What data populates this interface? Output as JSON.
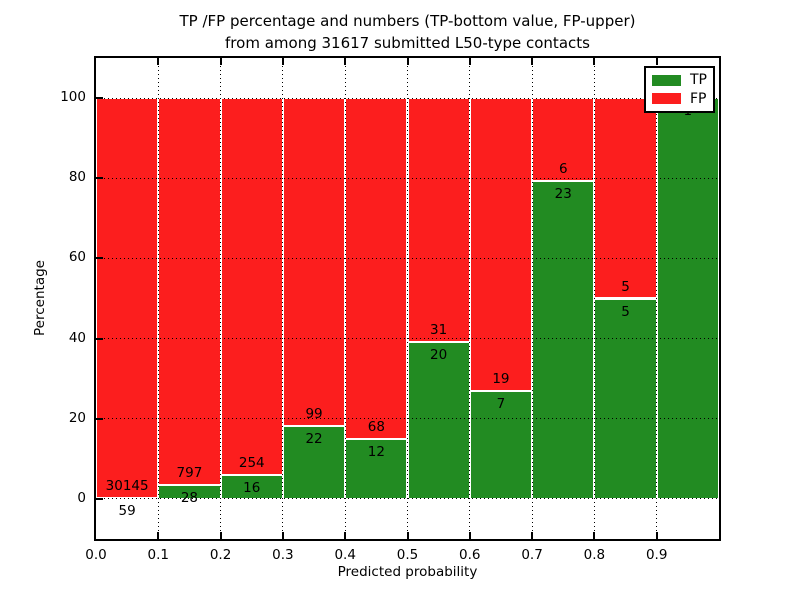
{
  "figure": {
    "title_line1": "TP /FP percentage and numbers (TP-bottom value, FP-upper)",
    "title_line2": "from among 31617 submitted L50-type contacts"
  },
  "axes": {
    "xlabel": "Predicted probability",
    "ylabel": "Percentage",
    "x_tick_labels": [
      "0.0",
      "0.1",
      "0.2",
      "0.3",
      "0.4",
      "0.5",
      "0.6",
      "0.7",
      "0.8",
      "0.9"
    ],
    "y_tick_labels": [
      "0",
      "20",
      "40",
      "60",
      "80",
      "100"
    ]
  },
  "legend": {
    "entries": [
      {
        "label": "TP",
        "color": "#228b22"
      },
      {
        "label": "FP",
        "color": "#fc1e1e"
      }
    ]
  },
  "colors": {
    "tp": "#228b22",
    "fp": "#fc1e1e",
    "grid": "#000000",
    "text": "#000000",
    "background": "#ffffff"
  },
  "chart_data": {
    "type": "bar",
    "stacked": true,
    "normalized_to_percent": true,
    "title": "TP /FP percentage and numbers (TP-bottom value, FP-upper) from among 31617 submitted L50-type contacts",
    "xlabel": "Predicted probability",
    "ylabel": "Percentage",
    "xlim": [
      0.0,
      1.0
    ],
    "ylim": [
      -10,
      110
    ],
    "x_tick_values": [
      0.0,
      0.1,
      0.2,
      0.3,
      0.4,
      0.5,
      0.6,
      0.7,
      0.8,
      0.9
    ],
    "x_grid_values": [
      0.1,
      0.2,
      0.3,
      0.4,
      0.5,
      0.6,
      0.7,
      0.8,
      0.9
    ],
    "y_tick_values": [
      0,
      20,
      40,
      60,
      80,
      100
    ],
    "grid": "dotted",
    "legend_position": "upper right",
    "bin_width": 0.1,
    "bins": [
      {
        "x0": 0.0,
        "x1": 0.1,
        "tp": 59,
        "fp": 30145,
        "tp_label": "59",
        "fp_label": "30145"
      },
      {
        "x0": 0.1,
        "x1": 0.2,
        "tp": 28,
        "fp": 797,
        "tp_label": "28",
        "fp_label": "797"
      },
      {
        "x0": 0.2,
        "x1": 0.3,
        "tp": 16,
        "fp": 254,
        "tp_label": "16",
        "fp_label": "254"
      },
      {
        "x0": 0.3,
        "x1": 0.4,
        "tp": 22,
        "fp": 99,
        "tp_label": "22",
        "fp_label": "99"
      },
      {
        "x0": 0.4,
        "x1": 0.5,
        "tp": 12,
        "fp": 68,
        "tp_label": "12",
        "fp_label": "68"
      },
      {
        "x0": 0.5,
        "x1": 0.6,
        "tp": 20,
        "fp": 31,
        "tp_label": "20",
        "fp_label": "31"
      },
      {
        "x0": 0.6,
        "x1": 0.7,
        "tp": 7,
        "fp": 19,
        "tp_label": "7",
        "fp_label": "19"
      },
      {
        "x0": 0.7,
        "x1": 0.8,
        "tp": 23,
        "fp": 6,
        "tp_label": "23",
        "fp_label": "6"
      },
      {
        "x0": 0.8,
        "x1": 0.9,
        "tp": 5,
        "fp": 5,
        "tp_label": "5",
        "fp_label": "5"
      },
      {
        "x0": 0.9,
        "x1": 1.0,
        "tp": 1,
        "fp": 0,
        "tp_label": "1",
        "fp_label": ""
      }
    ],
    "series": [
      {
        "name": "TP",
        "color": "#228b22",
        "values": [
          59,
          28,
          16,
          22,
          12,
          20,
          7,
          23,
          5,
          1
        ]
      },
      {
        "name": "FP",
        "color": "#fc1e1e",
        "values": [
          30145,
          797,
          254,
          99,
          68,
          31,
          19,
          6,
          5,
          0
        ]
      }
    ]
  }
}
